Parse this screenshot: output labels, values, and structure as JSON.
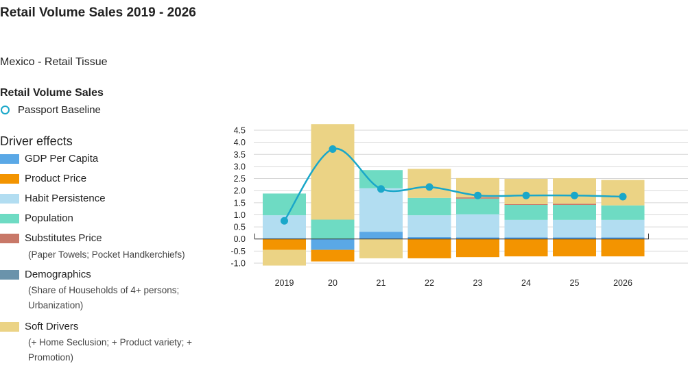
{
  "page": {
    "title": "Retail Volume Sales 2019 - 2026",
    "subtitle": "Mexico - Retail Tissue"
  },
  "legend": {
    "line_section": "Retail Volume Sales",
    "line_item": "Passport Baseline",
    "bar_section": "Driver effects",
    "items": [
      {
        "label": "GDP Per Capita",
        "color": "#5aa8e6"
      },
      {
        "label": "Product Price",
        "color": "#f39400"
      },
      {
        "label": "Habit Persistence",
        "color": "#b2ddf1"
      },
      {
        "label": "Population",
        "color": "#6edbc3"
      },
      {
        "label": "Substitutes Price",
        "color": "#c87868",
        "note": "(Paper Towels; Pocket Handkerchiefs)"
      },
      {
        "label": "Demographics",
        "color": "#6a93ab",
        "note": "(Share of Households of 4+ persons; Urbanization)"
      },
      {
        "label": "Soft Drivers",
        "color": "#ebd385",
        "note": "(+ Home Seclusion; + Product variety; + Promotion)"
      }
    ]
  },
  "chart_data": {
    "type": "bar",
    "stacked": true,
    "categories": [
      "2019",
      "20",
      "21",
      "22",
      "23",
      "24",
      "25",
      "2026"
    ],
    "ylim": [
      -1.0,
      4.5
    ],
    "yticks": [
      "4.5",
      "4.0",
      "3.5",
      "3.0",
      "2.5",
      "2.0",
      "1.5",
      "1.0",
      "0.5",
      "0.0",
      "-0.5",
      "-1.0"
    ],
    "grid": true,
    "series": [
      {
        "name": "GDP Per Capita",
        "color": "#5aa8e6",
        "values": [
          0.03,
          -0.45,
          0.3,
          0.08,
          0.07,
          0.07,
          0.07,
          0.07
        ]
      },
      {
        "name": "Product Price",
        "color": "#f39400",
        "values": [
          -0.45,
          -0.48,
          0.0,
          -0.8,
          -0.75,
          -0.72,
          -0.72,
          -0.72
        ]
      },
      {
        "name": "Habit Persistence",
        "color": "#b2ddf1",
        "values": [
          0.95,
          0.0,
          1.8,
          0.9,
          0.95,
          0.72,
          0.72,
          0.72
        ]
      },
      {
        "name": "Population",
        "color": "#6edbc3",
        "values": [
          0.9,
          0.8,
          0.75,
          0.72,
          0.65,
          0.62,
          0.62,
          0.6
        ]
      },
      {
        "name": "Substitutes Price",
        "color": "#c87868",
        "values": [
          0.0,
          0.0,
          0.0,
          0.0,
          0.05,
          0.03,
          0.05,
          0.0
        ]
      },
      {
        "name": "Demographics",
        "color": "#6a93ab",
        "values": [
          0.0,
          0.0,
          0.0,
          0.0,
          0.0,
          0.0,
          0.0,
          0.0
        ]
      },
      {
        "name": "Soft Drivers",
        "color": "#ebd385",
        "values": [
          -0.65,
          3.95,
          -0.8,
          1.2,
          0.8,
          1.05,
          1.05,
          1.05
        ]
      }
    ],
    "line": {
      "name": "Passport Baseline",
      "color": "#1aa7c9",
      "values": [
        0.75,
        3.72,
        2.07,
        2.15,
        1.8,
        1.8,
        1.8,
        1.75
      ]
    }
  }
}
